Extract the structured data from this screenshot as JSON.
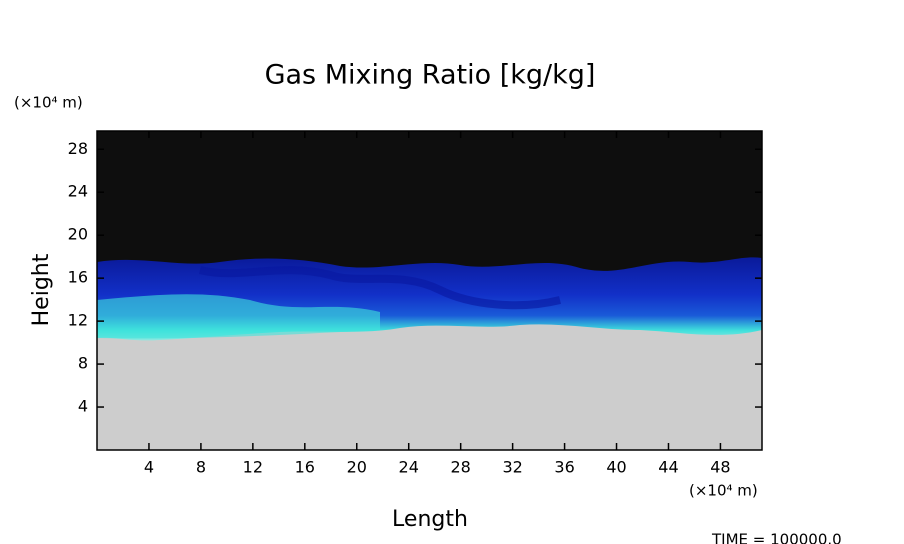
{
  "chart_data": {
    "type": "field",
    "title": "Gas Mixing Ratio [kg/kg]",
    "x_label": "Length",
    "y_label": "Height",
    "x_unit": "(×10⁴ m)",
    "y_unit": "(×10⁴ m)",
    "time_label": "TIME = 100000.0",
    "xlim": [
      0,
      51.2
    ],
    "ylim": [
      0,
      29.7
    ],
    "xticks": [
      4,
      8,
      12,
      16,
      20,
      24,
      28,
      32,
      36,
      40,
      44,
      48
    ],
    "yticks": [
      4,
      8,
      12,
      16,
      20,
      24,
      28
    ]
  }
}
